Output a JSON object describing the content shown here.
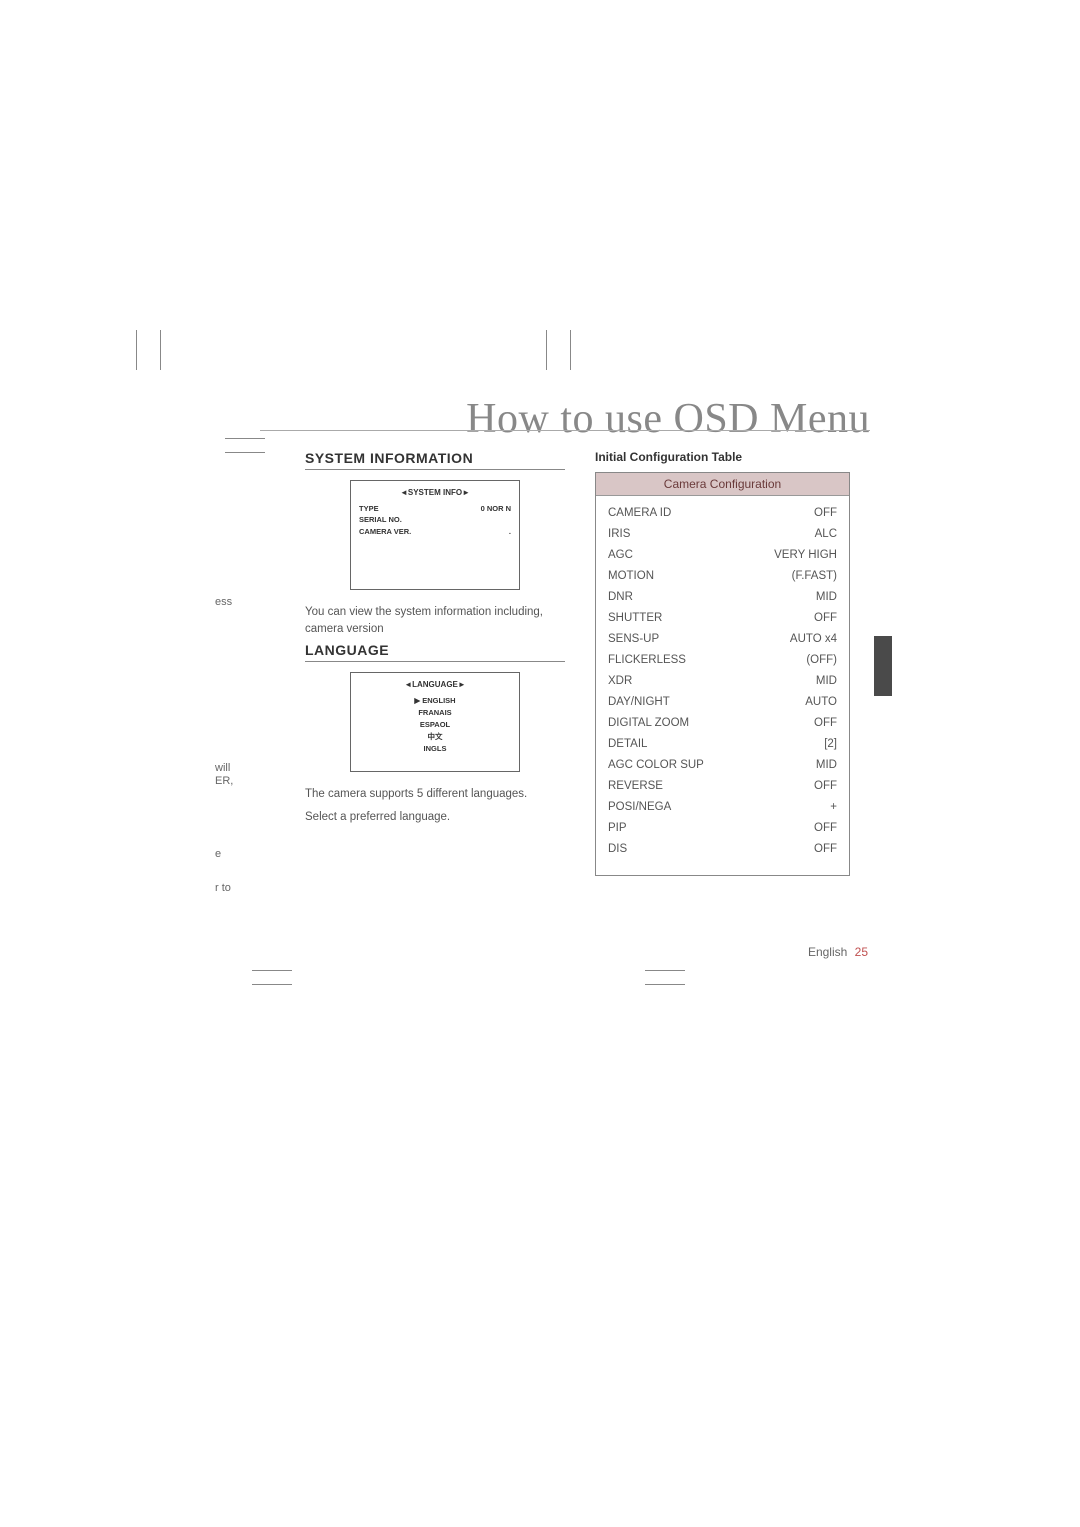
{
  "page": {
    "title": "How to use OSD Menu",
    "footer_lang": "English",
    "footer_page": "25"
  },
  "fragments": {
    "f1": "ess",
    "f2": "will",
    "f3": "ER,",
    "f4": "e",
    "f5": "r to"
  },
  "sysinfo": {
    "heading": "SYSTEM INFORMATION",
    "osd_title": "◄SYSTEM INFO►",
    "rows": [
      {
        "k": "TYPE",
        "v": "0 NOR N"
      },
      {
        "k": "SERIAL NO.",
        "v": ""
      },
      {
        "k": "CAMERA VER.",
        "v": "."
      }
    ],
    "caption": "You can view the system information including, camera version"
  },
  "language": {
    "heading": "LANGUAGE",
    "osd_title": "◄LANGUAGE►",
    "items": [
      "▶ ENGLISH",
      "FRANAIS",
      "ESPAOL",
      "中文",
      "INGLS"
    ],
    "line1": "The camera supports 5 different languages.",
    "line2": "Select a preferred language."
  },
  "config": {
    "caption": "Initial Configuration Table",
    "header": "Camera Configuration",
    "rows": [
      {
        "k": "CAMERA ID",
        "v": "OFF"
      },
      {
        "k": "IRIS",
        "v": "ALC"
      },
      {
        "k": "AGC",
        "v": "VERY HIGH"
      },
      {
        "k": "MOTION",
        "v": "(F.FAST)"
      },
      {
        "k": "DNR",
        "v": "MID"
      },
      {
        "k": "SHUTTER",
        "v": "OFF"
      },
      {
        "k": "SENS-UP",
        "v": "AUTO x4"
      },
      {
        "k": "FLICKERLESS",
        "v": "(OFF)"
      },
      {
        "k": "XDR",
        "v": "MID"
      },
      {
        "k": "DAY/NIGHT",
        "v": "AUTO"
      },
      {
        "k": "DIGITAL ZOOM",
        "v": "OFF"
      },
      {
        "k": "DETAIL",
        "v": "[2]"
      },
      {
        "k": "AGC COLOR SUP",
        "v": "MID"
      },
      {
        "k": "REVERSE",
        "v": "OFF"
      },
      {
        "k": "POSI/NEGA",
        "v": "+"
      },
      {
        "k": "PIP",
        "v": "OFF"
      },
      {
        "k": "DIS",
        "v": "OFF"
      }
    ]
  },
  "colors": {
    "table_header_bg": "#d9c6c6",
    "table_header_text": "#6a3a3a",
    "page_accent": "#c05050",
    "side_tab": "#4a4a4a"
  }
}
